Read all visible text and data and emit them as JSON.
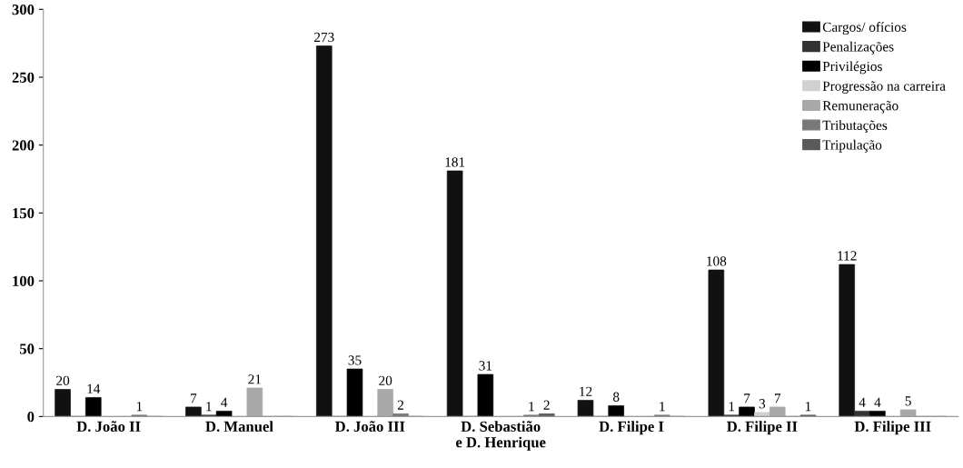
{
  "chart_data": {
    "type": "bar",
    "categories": [
      "D. João II",
      "D. Manuel",
      "D. João III",
      "D. Sebastião\ne D. Henrique",
      "D. Filipe I",
      "D. Filipe II",
      "D. Filipe III"
    ],
    "series": [
      {
        "name": "Cargos/ ofícios",
        "color": "#111111",
        "values": [
          20,
          7,
          273,
          181,
          12,
          108,
          112
        ],
        "value_labels": [
          "20",
          "7",
          "273",
          "181",
          "12",
          "108",
          "112"
        ]
      },
      {
        "name": "Penalizações",
        "color": "#333333",
        "values": [
          0,
          1,
          0,
          0,
          0,
          1,
          4
        ],
        "value_labels": [
          null,
          "1",
          null,
          null,
          null,
          "1",
          "4"
        ]
      },
      {
        "name": "Privilégios",
        "color": "#000000",
        "values": [
          14,
          4,
          35,
          31,
          8,
          7,
          4
        ],
        "value_labels": [
          "14",
          "4",
          "35",
          "31",
          "8",
          "7",
          "4"
        ]
      },
      {
        "name": "Progressão na carreira",
        "color": "#d0d0d0",
        "values": [
          0,
          0,
          0,
          0,
          0,
          3,
          0
        ],
        "value_labels": [
          null,
          null,
          null,
          null,
          null,
          "3",
          null
        ]
      },
      {
        "name": "Remuneração",
        "color": "#a8a8a8",
        "values": [
          0,
          21,
          20,
          0,
          0,
          7,
          5
        ],
        "value_labels": [
          null,
          "21",
          "20",
          null,
          null,
          "7",
          "5"
        ]
      },
      {
        "name": "Tributações",
        "color": "#787878",
        "values": [
          1,
          0,
          2,
          1,
          1,
          0,
          0
        ],
        "value_labels": [
          "1",
          null,
          "2",
          "1",
          "1",
          null,
          null
        ]
      },
      {
        "name": "Tripulação",
        "color": "#5a5a5a",
        "values": [
          0,
          0,
          0,
          2,
          0,
          1,
          0
        ],
        "value_labels": [
          null,
          null,
          null,
          "2",
          null,
          "1",
          null
        ]
      }
    ],
    "ylim": [
      0,
      300
    ],
    "yticks": [
      0,
      50,
      100,
      150,
      200,
      250,
      300
    ],
    "grid": false,
    "legend": "top right"
  }
}
